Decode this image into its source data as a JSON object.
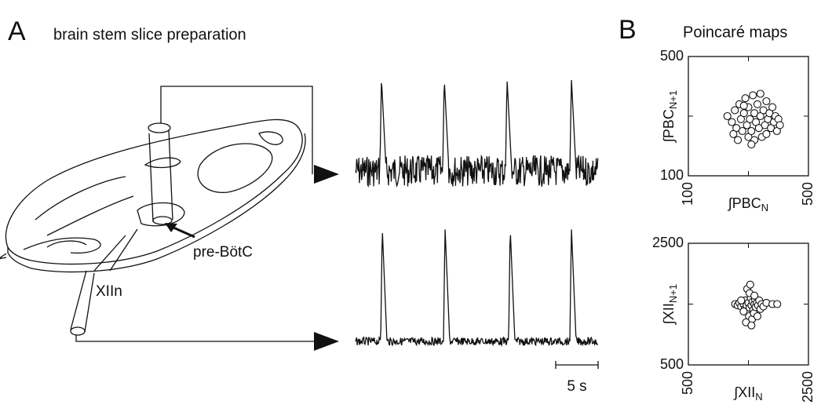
{
  "panel_a": {
    "letter": "A",
    "title": "brain stem slice preparation",
    "labels": {
      "pre_botc": "pre-BötC",
      "xiin": "XIIn"
    },
    "scale_bar": "5 s"
  },
  "panel_b": {
    "letter": "B",
    "title": "Poincaré maps",
    "maps": [
      {
        "type": "scatter",
        "x_label": {
          "base": "∫PBC",
          "sub": "N"
        },
        "y_label": {
          "base": "∫PBC",
          "sub": "N+1"
        },
        "xlim": [
          100,
          500
        ],
        "ylim": [
          100,
          500
        ],
        "xticks": [
          100,
          500
        ],
        "yticks": [
          100,
          500
        ],
        "minor_ticks": [
          300
        ],
        "x": [
          230,
          245,
          255,
          260,
          270,
          275,
          280,
          285,
          290,
          295,
          300,
          300,
          305,
          310,
          315,
          320,
          320,
          325,
          330,
          335,
          340,
          345,
          350,
          355,
          360,
          360,
          365,
          370,
          375,
          380,
          385,
          390,
          395,
          400,
          405,
          250,
          265,
          340,
          310,
          285
        ],
        "y": [
          300,
          280,
          320,
          260,
          340,
          290,
          250,
          310,
          360,
          270,
          230,
          330,
          290,
          250,
          370,
          310,
          220,
          280,
          340,
          260,
          300,
          230,
          320,
          270,
          350,
          240,
          290,
          310,
          260,
          330,
          280,
          300,
          250,
          290,
          270,
          240,
          220,
          375,
          205,
          335
        ]
      },
      {
        "type": "scatter",
        "x_label": {
          "base": "∫XII",
          "sub": "N"
        },
        "y_label": {
          "base": "∫XII",
          "sub": "N+1"
        },
        "xlim": [
          500,
          2500
        ],
        "ylim": [
          500,
          2500
        ],
        "xticks": [
          500,
          2500
        ],
        "yticks": [
          500,
          2500
        ],
        "minor_ticks": [
          1500
        ],
        "x": [
          1280,
          1320,
          1350,
          1380,
          1400,
          1420,
          1440,
          1450,
          1470,
          1490,
          1500,
          1510,
          1520,
          1540,
          1550,
          1560,
          1570,
          1580,
          1590,
          1600,
          1610,
          1620,
          1640,
          1650,
          1660,
          1680,
          1700,
          1720,
          1750,
          1800,
          1900,
          1980,
          1480,
          1530,
          1520,
          1460,
          1550,
          1420,
          1600,
          1380
        ],
        "y": [
          1500,
          1480,
          1520,
          1460,
          1540,
          1500,
          1420,
          1560,
          1480,
          1380,
          1520,
          1300,
          1440,
          1600,
          1480,
          1250,
          1540,
          1400,
          1350,
          1500,
          1580,
          1450,
          1520,
          1300,
          1480,
          1560,
          1420,
          1500,
          1460,
          1520,
          1500,
          1500,
          1750,
          1820,
          1680,
          1200,
          1150,
          1380,
          1640,
          1560
        ]
      }
    ]
  }
}
